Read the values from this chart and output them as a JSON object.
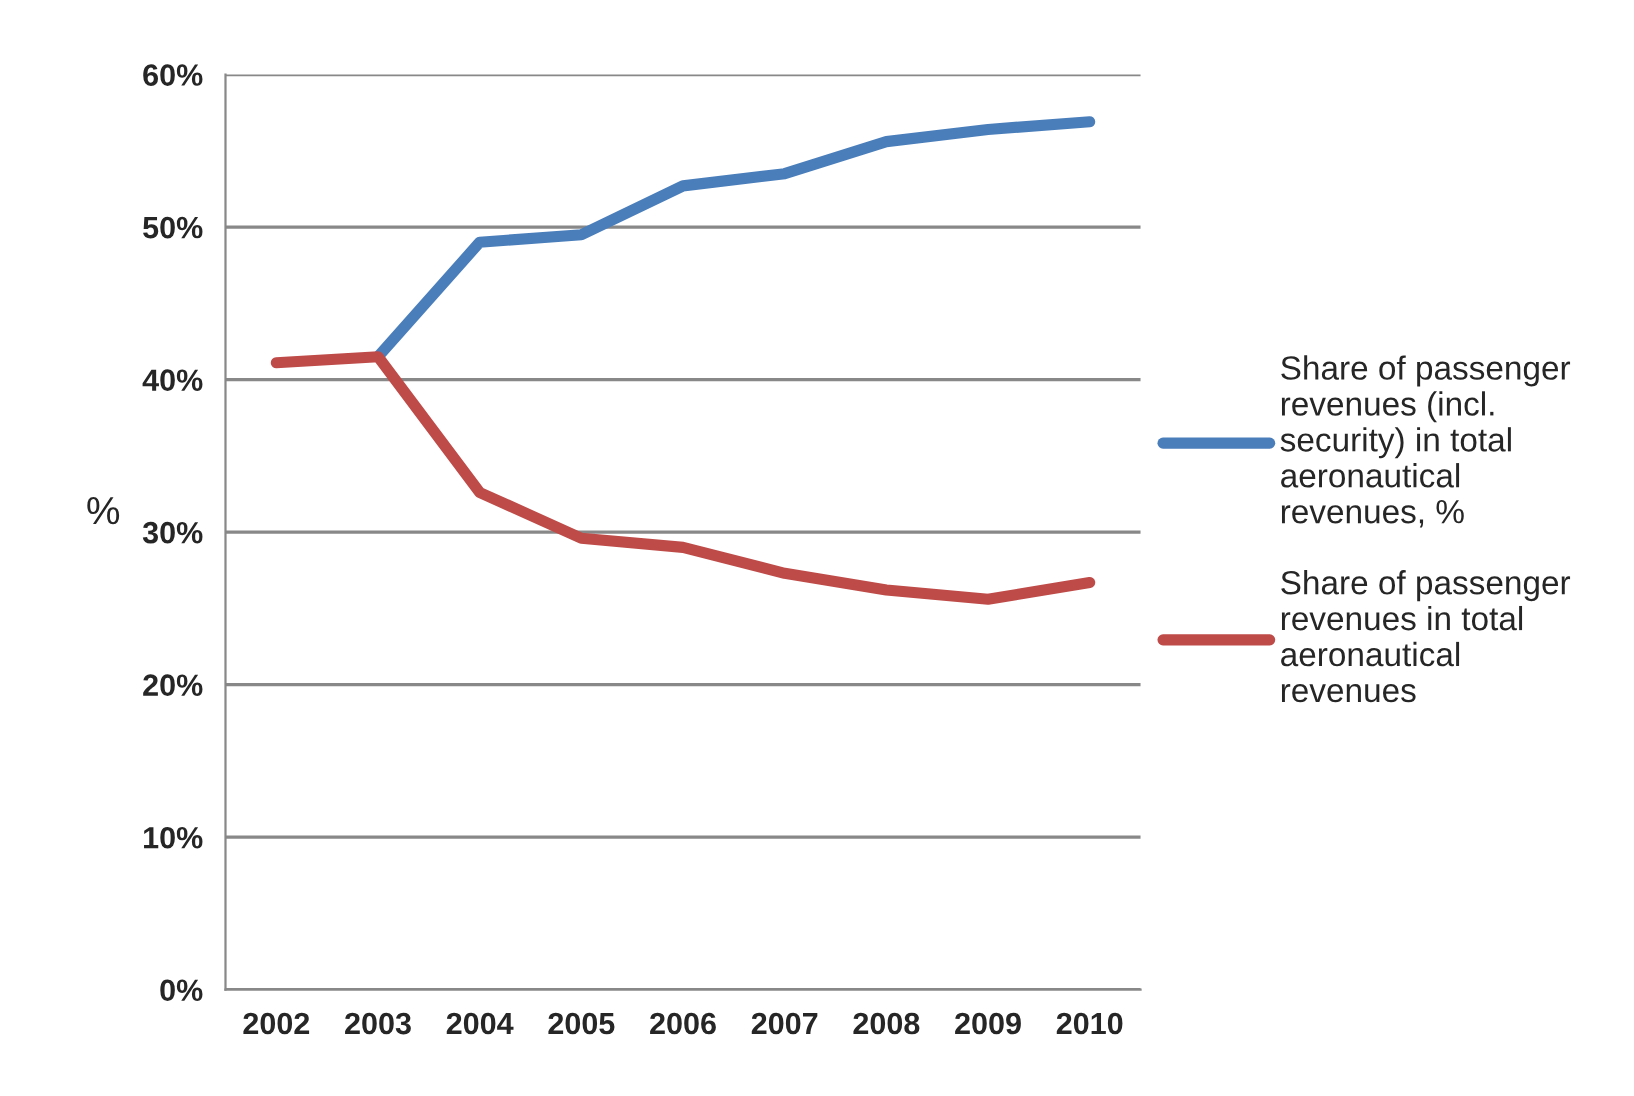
{
  "chart_data": {
    "type": "line",
    "ylabel": "%",
    "categories": [
      "2002",
      "2003",
      "2004",
      "2005",
      "2006",
      "2007",
      "2008",
      "2009",
      "2010"
    ],
    "series": [
      {
        "name": "Share of passenger revenues (incl. security) in total aeronautical revenues, %",
        "color": "#4a7ebb",
        "values": [
          null,
          41.5,
          49.0,
          49.5,
          52.7,
          53.5,
          55.6,
          56.4,
          56.9
        ]
      },
      {
        "name": "Share of passenger revenues in total aeronautical revenues",
        "color": "#be4b48",
        "values": [
          41.1,
          41.5,
          32.6,
          29.6,
          29.0,
          27.3,
          26.2,
          25.6,
          26.7
        ]
      }
    ],
    "ylim": [
      0,
      60
    ],
    "yticks": [
      {
        "value": 0,
        "label": "0%"
      },
      {
        "value": 10,
        "label": "10%"
      },
      {
        "value": 20,
        "label": "20%"
      },
      {
        "value": 30,
        "label": "30%"
      },
      {
        "value": 40,
        "label": "40%"
      },
      {
        "value": 50,
        "label": "50%"
      },
      {
        "value": 60,
        "label": "60%"
      }
    ],
    "grid": "y",
    "legend": "right",
    "marker": "none",
    "line_style": "solid"
  }
}
